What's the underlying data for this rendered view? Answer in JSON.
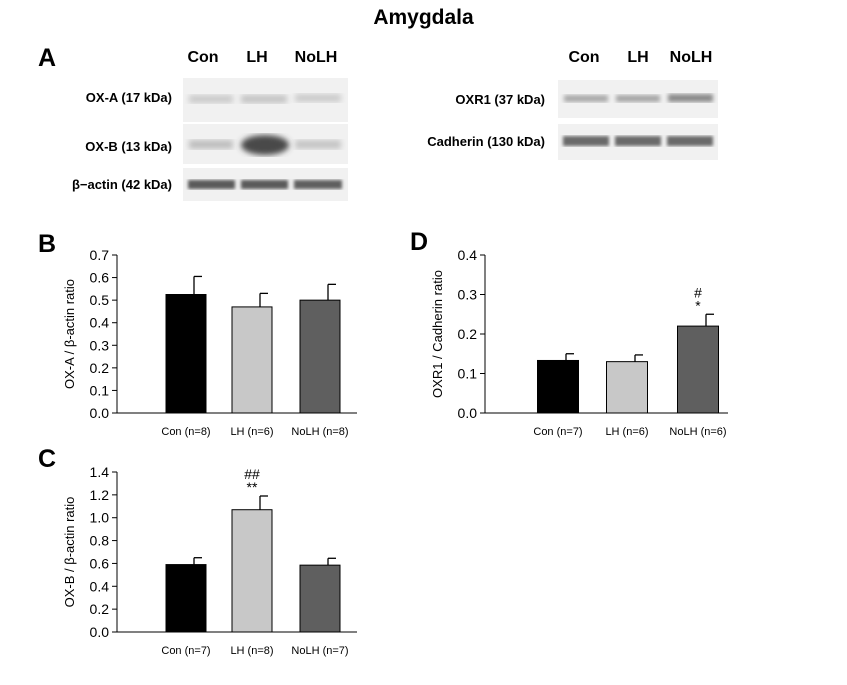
{
  "figure_title": "Amygdala",
  "panel_a": {
    "letter": "A",
    "left_headers": [
      "Con",
      "LH",
      "NoLH"
    ],
    "right_headers": [
      "Con",
      "LH",
      "NoLH"
    ],
    "left_rows": [
      "OX-A (17 kDa)",
      "OX-B (13 kDa)",
      "β−actin (42 kDa)"
    ],
    "right_rows": [
      "OXR1 (37 kDa)",
      "Cadherin (130 kDa)"
    ]
  },
  "chart_data": [
    {
      "panel": "B",
      "type": "bar",
      "categories": [
        "Con (n=8)",
        "LH (n=6)",
        "NoLH (n=8)"
      ],
      "values": [
        0.525,
        0.47,
        0.5
      ],
      "errors": [
        0.08,
        0.06,
        0.07
      ],
      "annotations": [
        "",
        "",
        ""
      ],
      "colors": [
        "#000000",
        "#c8c8c8",
        "#5f5f5f"
      ],
      "ylabel": "OX-A / β-actin ratio",
      "ylim": [
        0,
        0.7
      ],
      "yticks": [
        "0.0",
        "0.1",
        "0.2",
        "0.3",
        "0.4",
        "0.5",
        "0.6",
        "0.7"
      ]
    },
    {
      "panel": "C",
      "type": "bar",
      "categories": [
        "Con (n=7)",
        "LH (n=8)",
        "NoLH (n=7)"
      ],
      "values": [
        0.59,
        1.07,
        0.585
      ],
      "errors": [
        0.06,
        0.12,
        0.06
      ],
      "annotations": [
        "",
        "##\n**",
        ""
      ],
      "colors": [
        "#000000",
        "#c8c8c8",
        "#5f5f5f"
      ],
      "ylabel": "OX-B / β-actin ratio",
      "ylim": [
        0,
        1.4
      ],
      "yticks": [
        "0.0",
        "0.2",
        "0.4",
        "0.6",
        "0.8",
        "1.0",
        "1.2",
        "1.4"
      ]
    },
    {
      "panel": "D",
      "type": "bar",
      "categories": [
        "Con (n=7)",
        "LH (n=6)",
        "NoLH (n=6)"
      ],
      "values": [
        0.133,
        0.13,
        0.22
      ],
      "errors": [
        0.017,
        0.017,
        0.03
      ],
      "annotations": [
        "",
        "",
        "#\n*"
      ],
      "colors": [
        "#000000",
        "#c8c8c8",
        "#5f5f5f"
      ],
      "ylabel": "OXR1 / Cadherin ratio",
      "ylim": [
        0,
        0.4
      ],
      "yticks": [
        "0.0",
        "0.1",
        "0.2",
        "0.3",
        "0.4"
      ]
    }
  ]
}
